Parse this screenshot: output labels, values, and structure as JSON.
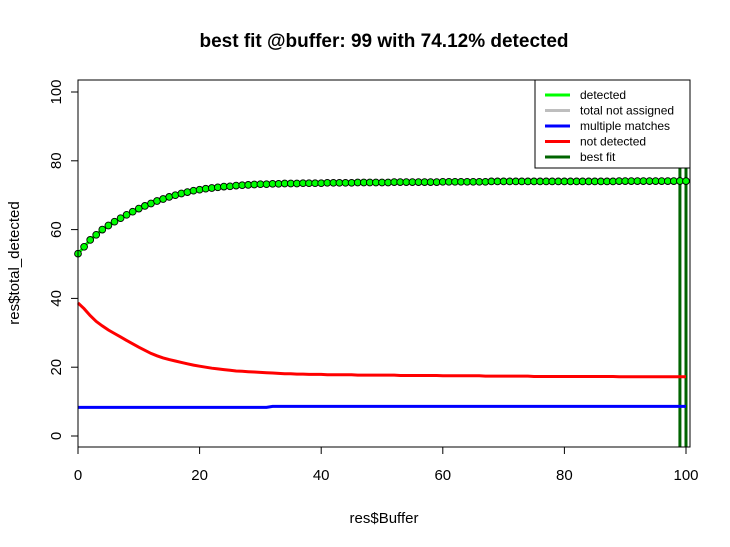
{
  "chart_data": {
    "type": "line",
    "title": "best fit @buffer: 99 with 74.12% detected",
    "xlabel": "res$Buffer",
    "ylabel": "res$total_detected",
    "xlim": [
      0,
      100
    ],
    "ylim": [
      0,
      100
    ],
    "x_ticks": [
      "0",
      "20",
      "40",
      "60",
      "80",
      "100"
    ],
    "y_ticks": [
      "0",
      "20",
      "40",
      "60",
      "80",
      "100"
    ],
    "grid": false,
    "legend_position": "top-right",
    "legend": [
      {
        "label": "detected",
        "color": "#00ff00"
      },
      {
        "label": "total not assigned",
        "color": "#bebebe"
      },
      {
        "label": "multiple matches",
        "color": "#0000ff"
      },
      {
        "label": "not detected",
        "color": "#ff0000"
      },
      {
        "label": "best fit",
        "color": "#006400"
      }
    ],
    "series": [
      {
        "name": "detected",
        "color": "#00ff00",
        "points": true,
        "x": [
          0,
          1,
          2,
          3,
          4,
          5,
          6,
          7,
          8,
          9,
          10,
          11,
          12,
          13,
          14,
          15,
          16,
          17,
          18,
          19,
          20,
          21,
          22,
          23,
          24,
          25,
          26,
          27,
          28,
          29,
          30,
          31,
          32,
          33,
          34,
          35,
          36,
          37,
          38,
          39,
          40,
          41,
          42,
          43,
          44,
          45,
          46,
          47,
          48,
          49,
          50,
          51,
          52,
          53,
          54,
          55,
          56,
          57,
          58,
          59,
          60,
          61,
          62,
          63,
          64,
          65,
          66,
          67,
          68,
          69,
          70,
          71,
          72,
          73,
          74,
          75,
          76,
          77,
          78,
          79,
          80,
          81,
          82,
          83,
          84,
          85,
          86,
          87,
          88,
          89,
          90,
          91,
          92,
          93,
          94,
          95,
          96,
          97,
          98,
          99,
          100
        ],
        "values": [
          53.0,
          55.0,
          57.0,
          58.5,
          60.0,
          61.2,
          62.3,
          63.3,
          64.3,
          65.2,
          66.1,
          66.9,
          67.6,
          68.3,
          68.9,
          69.5,
          70.0,
          70.5,
          70.9,
          71.3,
          71.6,
          71.9,
          72.1,
          72.3,
          72.5,
          72.6,
          72.8,
          72.9,
          73.0,
          73.1,
          73.2,
          73.2,
          73.3,
          73.3,
          73.4,
          73.4,
          73.4,
          73.5,
          73.5,
          73.5,
          73.5,
          73.6,
          73.6,
          73.6,
          73.6,
          73.6,
          73.7,
          73.7,
          73.7,
          73.7,
          73.7,
          73.7,
          73.8,
          73.8,
          73.8,
          73.8,
          73.8,
          73.8,
          73.8,
          73.8,
          73.9,
          73.9,
          73.9,
          73.9,
          73.9,
          73.9,
          73.9,
          73.9,
          74.0,
          74.0,
          74.0,
          74.0,
          74.0,
          74.0,
          74.0,
          74.0,
          74.0,
          74.0,
          74.0,
          74.0,
          74.0,
          74.0,
          74.0,
          74.0,
          74.0,
          74.0,
          74.0,
          74.0,
          74.0,
          74.1,
          74.1,
          74.1,
          74.1,
          74.1,
          74.1,
          74.1,
          74.1,
          74.1,
          74.1,
          74.12,
          74.1
        ]
      },
      {
        "name": "not detected",
        "color": "#ff0000",
        "points": false,
        "x": [
          0,
          1,
          2,
          3,
          4,
          5,
          6,
          7,
          8,
          9,
          10,
          11,
          12,
          13,
          14,
          15,
          16,
          17,
          18,
          19,
          20,
          21,
          22,
          23,
          24,
          25,
          26,
          27,
          28,
          29,
          30,
          31,
          32,
          33,
          34,
          35,
          36,
          37,
          38,
          39,
          40,
          41,
          42,
          43,
          44,
          45,
          46,
          47,
          48,
          49,
          50,
          51,
          52,
          53,
          54,
          55,
          56,
          57,
          58,
          59,
          60,
          61,
          62,
          63,
          64,
          65,
          66,
          67,
          68,
          69,
          70,
          71,
          72,
          73,
          74,
          75,
          76,
          77,
          78,
          79,
          80,
          81,
          82,
          83,
          84,
          85,
          86,
          87,
          88,
          89,
          90,
          91,
          92,
          93,
          94,
          95,
          96,
          97,
          98,
          99,
          100
        ],
        "values": [
          38.7,
          37.0,
          35.0,
          33.3,
          32.0,
          30.8,
          29.8,
          28.8,
          27.8,
          26.8,
          25.8,
          24.9,
          24.0,
          23.3,
          22.7,
          22.2,
          21.8,
          21.4,
          21.0,
          20.6,
          20.3,
          20.0,
          19.7,
          19.5,
          19.3,
          19.1,
          18.9,
          18.8,
          18.7,
          18.6,
          18.5,
          18.4,
          18.3,
          18.2,
          18.1,
          18.1,
          18.0,
          18.0,
          17.9,
          17.9,
          17.9,
          17.8,
          17.8,
          17.8,
          17.8,
          17.8,
          17.7,
          17.7,
          17.7,
          17.7,
          17.7,
          17.7,
          17.7,
          17.6,
          17.6,
          17.6,
          17.6,
          17.6,
          17.6,
          17.6,
          17.5,
          17.5,
          17.5,
          17.5,
          17.5,
          17.5,
          17.5,
          17.4,
          17.4,
          17.4,
          17.4,
          17.4,
          17.4,
          17.4,
          17.4,
          17.3,
          17.3,
          17.3,
          17.3,
          17.3,
          17.3,
          17.3,
          17.3,
          17.3,
          17.3,
          17.3,
          17.3,
          17.3,
          17.3,
          17.2,
          17.2,
          17.2,
          17.2,
          17.2,
          17.2,
          17.2,
          17.2,
          17.2,
          17.2,
          17.2,
          17.2
        ]
      },
      {
        "name": "multiple matches",
        "color": "#0000ff",
        "points": false,
        "x": [
          0,
          10,
          20,
          31,
          32,
          40,
          50,
          60,
          70,
          80,
          90,
          100
        ],
        "values": [
          8.3,
          8.3,
          8.3,
          8.3,
          8.6,
          8.6,
          8.6,
          8.6,
          8.6,
          8.6,
          8.6,
          8.6
        ]
      }
    ],
    "best_fit_lines": [
      {
        "x": 99,
        "color": "#006400"
      },
      {
        "x": 100,
        "color": "#006400"
      }
    ]
  }
}
